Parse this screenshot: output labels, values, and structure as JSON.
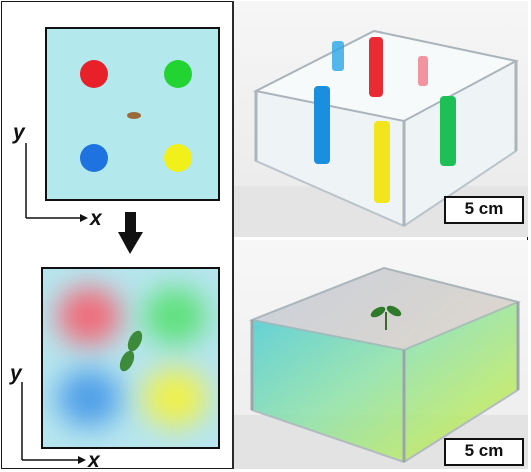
{
  "top_schematic": {
    "axis_y": "y",
    "axis_x": "x",
    "colors": {
      "background": "#b3e8ec",
      "red": "#e8202a",
      "green": "#21d431",
      "blue": "#1f73e0",
      "yellow": "#f2f01a",
      "seed": "#9a6b3a"
    }
  },
  "bottom_schematic": {
    "axis_y": "y",
    "axis_x": "x",
    "colors": {
      "background": "#b7e6ef",
      "red": "#f06a78",
      "green": "#5ee07a",
      "blue": "#4f9ee8",
      "yellow": "#f0f04a",
      "seedling": "#3d8a3a"
    }
  },
  "photo_top": {
    "scale_label": "5 cm"
  },
  "photo_bottom": {
    "scale_label": "5 cm"
  }
}
